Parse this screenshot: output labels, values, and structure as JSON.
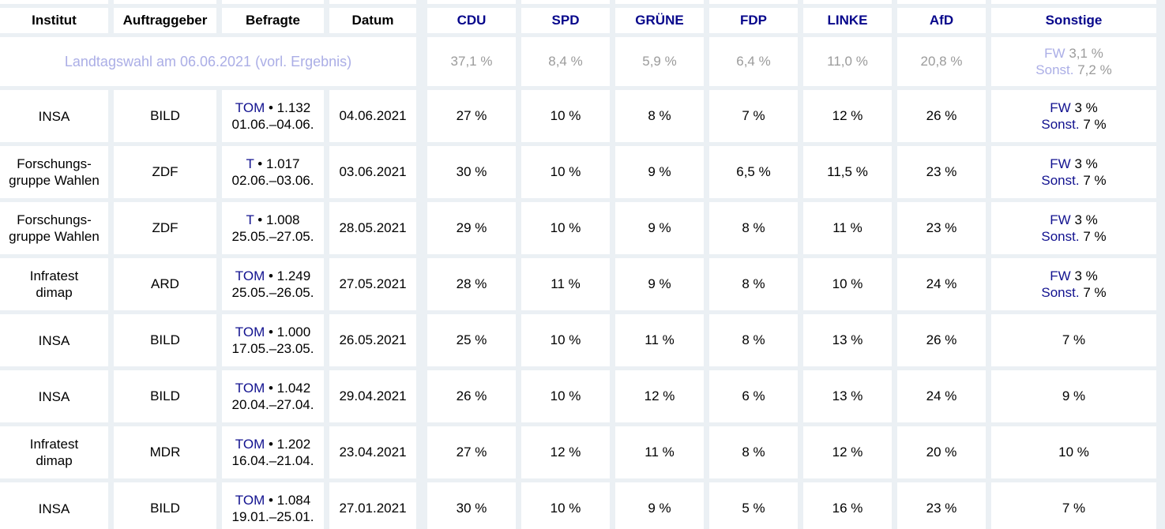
{
  "colors": {
    "page_background": "#ebf0f4",
    "cell_background": "#ffffff",
    "text": "#000000",
    "party_header_link": "#06068b",
    "inline_link": "#11118f",
    "faded_result_link": "#abaee6",
    "result_muted_text": "#9b9b9b"
  },
  "table": {
    "bullet": "•",
    "meta_headers": [
      "Institut",
      "Auftraggeber",
      "Befragte",
      "Datum"
    ],
    "party_headers": [
      "CDU",
      "SPD",
      "GRÜNE",
      "FDP",
      "LINKE",
      "AfD",
      "Sonstige"
    ],
    "result_row": {
      "label": "Landtagswahl am 06.06.2021 (vorl. Ergebnis)",
      "values": [
        "37,1 %",
        "8,4 %",
        "5,9 %",
        "6,4 %",
        "11,0 %",
        "20,8 %"
      ],
      "sonstige": {
        "lines": [
          {
            "link": "FW",
            "value": "3,1 %"
          },
          {
            "link": "Sonst.",
            "value": "7,2 %"
          }
        ]
      }
    },
    "rows": [
      {
        "institut_lines": [
          "INSA"
        ],
        "auftraggeber": "BILD",
        "befragte": {
          "link": "TOM",
          "n": "1.132",
          "zeitraum": "01.06.–04.06."
        },
        "datum": "04.06.2021",
        "values": [
          "27 %",
          "10 %",
          "8 %",
          "7 %",
          "12 %",
          "26 %"
        ],
        "sonstige": {
          "lines": [
            {
              "link": "FW",
              "value": "3 %"
            },
            {
              "link": "Sonst.",
              "value": "7 %"
            }
          ]
        }
      },
      {
        "institut_lines": [
          "Forschungs-",
          "gruppe Wahlen"
        ],
        "auftraggeber": "ZDF",
        "befragte": {
          "link": "T",
          "n": "1.017",
          "zeitraum": "02.06.–03.06."
        },
        "datum": "03.06.2021",
        "values": [
          "30 %",
          "10 %",
          "9 %",
          "6,5 %",
          "11,5 %",
          "23 %"
        ],
        "sonstige": {
          "lines": [
            {
              "link": "FW",
              "value": "3 %"
            },
            {
              "link": "Sonst.",
              "value": "7 %"
            }
          ]
        }
      },
      {
        "institut_lines": [
          "Forschungs-",
          "gruppe Wahlen"
        ],
        "auftraggeber": "ZDF",
        "befragte": {
          "link": "T",
          "n": "1.008",
          "zeitraum": "25.05.–27.05."
        },
        "datum": "28.05.2021",
        "values": [
          "29 %",
          "10 %",
          "9 %",
          "8 %",
          "11 %",
          "23 %"
        ],
        "sonstige": {
          "lines": [
            {
              "link": "FW",
              "value": "3 %"
            },
            {
              "link": "Sonst.",
              "value": "7 %"
            }
          ]
        }
      },
      {
        "institut_lines": [
          "Infratest",
          "dimap"
        ],
        "auftraggeber": "ARD",
        "befragte": {
          "link": "TOM",
          "n": "1.249",
          "zeitraum": "25.05.–26.05."
        },
        "datum": "27.05.2021",
        "values": [
          "28 %",
          "11 %",
          "9 %",
          "8 %",
          "10 %",
          "24 %"
        ],
        "sonstige": {
          "lines": [
            {
              "link": "FW",
              "value": "3 %"
            },
            {
              "link": "Sonst.",
              "value": "7 %"
            }
          ]
        }
      },
      {
        "institut_lines": [
          "INSA"
        ],
        "auftraggeber": "BILD",
        "befragte": {
          "link": "TOM",
          "n": "1.000",
          "zeitraum": "17.05.–23.05."
        },
        "datum": "26.05.2021",
        "values": [
          "25 %",
          "10 %",
          "11 %",
          "8 %",
          "13 %",
          "26 %"
        ],
        "sonstige": {
          "plain": "7 %"
        }
      },
      {
        "institut_lines": [
          "INSA"
        ],
        "auftraggeber": "BILD",
        "befragte": {
          "link": "TOM",
          "n": "1.042",
          "zeitraum": "20.04.–27.04."
        },
        "datum": "29.04.2021",
        "values": [
          "26 %",
          "10 %",
          "12 %",
          "6 %",
          "13 %",
          "24 %"
        ],
        "sonstige": {
          "plain": "9 %"
        }
      },
      {
        "institut_lines": [
          "Infratest",
          "dimap"
        ],
        "auftraggeber": "MDR",
        "befragte": {
          "link": "TOM",
          "n": "1.202",
          "zeitraum": "16.04.–21.04."
        },
        "datum": "23.04.2021",
        "values": [
          "27 %",
          "12 %",
          "11 %",
          "8 %",
          "12 %",
          "20 %"
        ],
        "sonstige": {
          "plain": "10 %"
        }
      },
      {
        "institut_lines": [
          "INSA"
        ],
        "auftraggeber": "BILD",
        "befragte": {
          "link": "TOM",
          "n": "1.084",
          "zeitraum": "19.01.–25.01."
        },
        "datum": "27.01.2021",
        "values": [
          "30 %",
          "10 %",
          "9 %",
          "5 %",
          "16 %",
          "23 %"
        ],
        "sonstige": {
          "plain": "7 %"
        }
      }
    ]
  },
  "chart_data": {
    "type": "table",
    "columns": [
      "Institut",
      "Auftraggeber",
      "Befragte",
      "Datum",
      "CDU",
      "SPD",
      "GRÜNE",
      "FDP",
      "LINKE",
      "AfD",
      "Sonstige"
    ],
    "rows": [
      [
        "Landtagswahl am 06.06.2021 (vorl. Ergebnis)",
        "",
        "",
        "",
        "37,1 %",
        "8,4 %",
        "5,9 %",
        "6,4 %",
        "11,0 %",
        "20,8 %",
        "FW 3,1 % / Sonst. 7,2 %"
      ],
      [
        "INSA",
        "BILD",
        "TOM • 1.132, 01.06.–04.06.",
        "04.06.2021",
        "27 %",
        "10 %",
        "8 %",
        "7 %",
        "12 %",
        "26 %",
        "FW 3 % / Sonst. 7 %"
      ],
      [
        "Forschungsgruppe Wahlen",
        "ZDF",
        "T • 1.017, 02.06.–03.06.",
        "03.06.2021",
        "30 %",
        "10 %",
        "9 %",
        "6,5 %",
        "11,5 %",
        "23 %",
        "FW 3 % / Sonst. 7 %"
      ],
      [
        "Forschungsgruppe Wahlen",
        "ZDF",
        "T • 1.008, 25.05.–27.05.",
        "28.05.2021",
        "29 %",
        "10 %",
        "9 %",
        "8 %",
        "11 %",
        "23 %",
        "FW 3 % / Sonst. 7 %"
      ],
      [
        "Infratest dimap",
        "ARD",
        "TOM • 1.249, 25.05.–26.05.",
        "27.05.2021",
        "28 %",
        "11 %",
        "9 %",
        "8 %",
        "10 %",
        "24 %",
        "FW 3 % / Sonst. 7 %"
      ],
      [
        "INSA",
        "BILD",
        "TOM • 1.000, 17.05.–23.05.",
        "26.05.2021",
        "25 %",
        "10 %",
        "11 %",
        "8 %",
        "13 %",
        "26 %",
        "7 %"
      ],
      [
        "INSA",
        "BILD",
        "TOM • 1.042, 20.04.–27.04.",
        "29.04.2021",
        "26 %",
        "10 %",
        "12 %",
        "6 %",
        "13 %",
        "24 %",
        "9 %"
      ],
      [
        "Infratest dimap",
        "MDR",
        "TOM • 1.202, 16.04.–21.04.",
        "23.04.2021",
        "27 %",
        "12 %",
        "11 %",
        "8 %",
        "12 %",
        "20 %",
        "10 %"
      ],
      [
        "INSA",
        "BILD",
        "TOM • 1.084, 19.01.–25.01.",
        "27.01.2021",
        "30 %",
        "10 %",
        "9 %",
        "5 %",
        "16 %",
        "23 %",
        "7 %"
      ]
    ]
  }
}
